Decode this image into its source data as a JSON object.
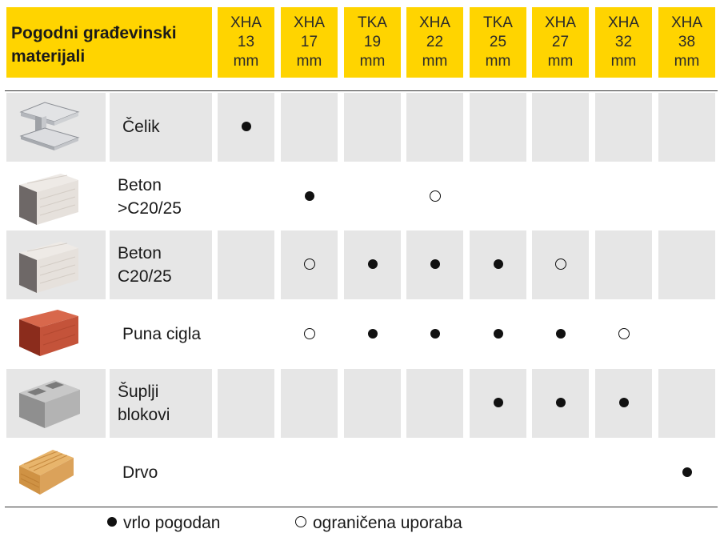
{
  "header": {
    "title_line1": "Pogodni građevinski",
    "title_line2": "materijali",
    "columns": [
      {
        "type": "XHA",
        "size": "13",
        "unit": "mm"
      },
      {
        "type": "XHA",
        "size": "17",
        "unit": "mm"
      },
      {
        "type": "TKA",
        "size": "19",
        "unit": "mm"
      },
      {
        "type": "XHA",
        "size": "22",
        "unit": "mm"
      },
      {
        "type": "TKA",
        "size": "25",
        "unit": "mm"
      },
      {
        "type": "XHA",
        "size": "27",
        "unit": "mm"
      },
      {
        "type": "XHA",
        "size": "32",
        "unit": "mm"
      },
      {
        "type": "XHA",
        "size": "38",
        "unit": "mm"
      }
    ]
  },
  "rows": [
    {
      "icon": "steel-beam-icon",
      "name_line1": "Čelik",
      "name_line2": "",
      "marks": [
        "full",
        "",
        "",
        "",
        "",
        "",
        "",
        ""
      ]
    },
    {
      "icon": "concrete-block-icon",
      "name_line1": "Beton",
      "name_line2": ">C20/25",
      "marks": [
        "",
        "full",
        "",
        "open",
        "",
        "",
        "",
        ""
      ]
    },
    {
      "icon": "concrete-block-icon",
      "name_line1": "Beton",
      "name_line2": "C20/25",
      "marks": [
        "",
        "open",
        "full",
        "full",
        "full",
        "open",
        "",
        ""
      ]
    },
    {
      "icon": "solid-brick-icon",
      "name_line1": "Puna cigla",
      "name_line2": "",
      "marks": [
        "",
        "open",
        "full",
        "full",
        "full",
        "full",
        "open",
        ""
      ]
    },
    {
      "icon": "hollow-block-icon",
      "name_line1": "Šuplji",
      "name_line2": "blokovi",
      "marks": [
        "",
        "",
        "",
        "",
        "full",
        "full",
        "full",
        ""
      ]
    },
    {
      "icon": "wood-icon",
      "name_line1": "Drvo",
      "name_line2": "",
      "marks": [
        "",
        "",
        "",
        "",
        "",
        "",
        "",
        "full"
      ]
    }
  ],
  "legend": {
    "full_label": "vrlo pogodan",
    "open_label": "ograničena uporaba"
  },
  "colors": {
    "header_yellow": "#ffd400",
    "cell_gray": "#e6e6e6",
    "brick": "#c4533a"
  }
}
